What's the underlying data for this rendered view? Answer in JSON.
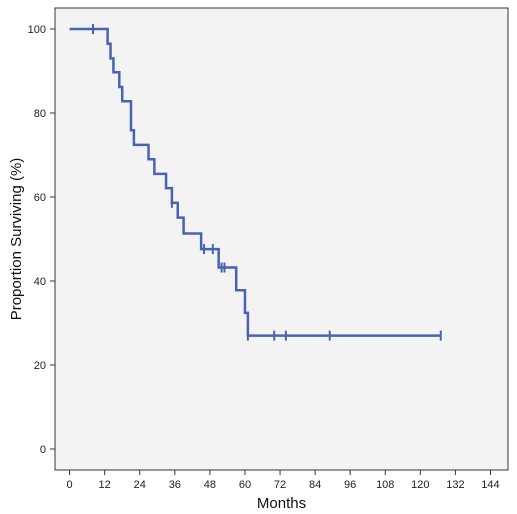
{
  "chart_data": {
    "type": "line",
    "title": "",
    "xlabel": "Months",
    "ylabel": "Proportion Surviving (%)",
    "xlim": [
      -5,
      150
    ],
    "ylim": [
      -5,
      105
    ],
    "x_ticks": [
      0,
      12,
      24,
      36,
      48,
      60,
      72,
      84,
      96,
      108,
      120,
      132,
      144
    ],
    "y_ticks": [
      0,
      20,
      40,
      60,
      80,
      100
    ],
    "grid": false,
    "legend": "none",
    "colors": {
      "line": "#4a63b0",
      "plot_background": "#f3f3f3",
      "axis": "#333333"
    },
    "series": [
      {
        "step_points": [
          [
            0,
            100
          ],
          [
            13,
            100
          ],
          [
            13,
            96.5
          ],
          [
            14,
            96.5
          ],
          [
            14,
            93
          ],
          [
            15,
            93
          ],
          [
            15,
            89.7
          ],
          [
            17,
            89.7
          ],
          [
            17,
            86.2
          ],
          [
            18,
            86.2
          ],
          [
            18,
            82.8
          ],
          [
            21,
            82.8
          ],
          [
            21,
            75.9
          ],
          [
            22,
            75.9
          ],
          [
            22,
            72.4
          ],
          [
            27,
            72.4
          ],
          [
            27,
            69
          ],
          [
            29,
            69
          ],
          [
            29,
            65.5
          ],
          [
            33,
            65.5
          ],
          [
            33,
            62.1
          ],
          [
            35,
            62.1
          ],
          [
            35,
            58.6
          ],
          [
            37,
            58.6
          ],
          [
            37,
            55.1
          ],
          [
            39,
            55.1
          ],
          [
            39,
            51.3
          ],
          [
            45,
            51.3
          ],
          [
            45,
            47.6
          ],
          [
            51,
            47.6
          ],
          [
            51,
            43.2
          ],
          [
            57,
            43.2
          ],
          [
            57,
            37.8
          ],
          [
            60,
            37.8
          ],
          [
            60,
            32.4
          ],
          [
            61,
            32.4
          ],
          [
            61,
            27
          ],
          [
            127,
            27
          ]
        ],
        "censored": [
          [
            8,
            100
          ],
          [
            35,
            58.6
          ],
          [
            46,
            47.6
          ],
          [
            49,
            47.6
          ],
          [
            52,
            43.2
          ],
          [
            53,
            43.2
          ],
          [
            61,
            27
          ],
          [
            70,
            27
          ],
          [
            74,
            27
          ],
          [
            89,
            27
          ],
          [
            127,
            27
          ]
        ]
      }
    ]
  }
}
